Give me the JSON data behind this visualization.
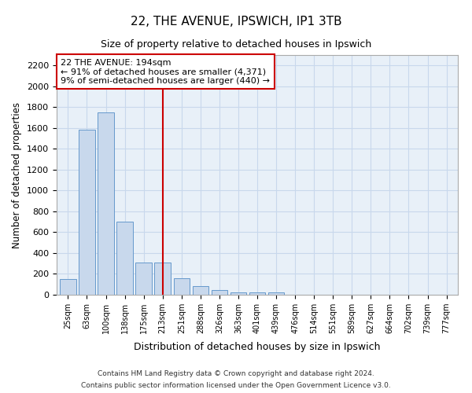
{
  "title1": "22, THE AVENUE, IPSWICH, IP1 3TB",
  "title2": "Size of property relative to detached houses in Ipswich",
  "xlabel": "Distribution of detached houses by size in Ipswich",
  "ylabel": "Number of detached properties",
  "bar_labels": [
    "25sqm",
    "63sqm",
    "100sqm",
    "138sqm",
    "175sqm",
    "213sqm",
    "251sqm",
    "288sqm",
    "326sqm",
    "363sqm",
    "401sqm",
    "439sqm",
    "476sqm",
    "514sqm",
    "551sqm",
    "589sqm",
    "627sqm",
    "664sqm",
    "702sqm",
    "739sqm",
    "777sqm"
  ],
  "bar_values": [
    150,
    1580,
    1750,
    700,
    310,
    310,
    155,
    80,
    45,
    25,
    20,
    20,
    0,
    0,
    0,
    0,
    0,
    0,
    0,
    0,
    0
  ],
  "bar_color": "#c8d8ec",
  "bar_edge_color": "#6699cc",
  "property_label": "22 THE AVENUE: 194sqm",
  "annotation_line1": "← 91% of detached houses are smaller (4,371)",
  "annotation_line2": "9% of semi-detached houses are larger (440) →",
  "annotation_box_color": "#ffffff",
  "annotation_box_edge": "#cc0000",
  "vline_color": "#cc0000",
  "vline_x": 5.0,
  "ylim": [
    0,
    2300
  ],
  "yticks": [
    0,
    200,
    400,
    600,
    800,
    1000,
    1200,
    1400,
    1600,
    1800,
    2000,
    2200
  ],
  "grid_color": "#c8d8ec",
  "bg_color": "#e8f0f8",
  "footer1": "Contains HM Land Registry data © Crown copyright and database right 2024.",
  "footer2": "Contains public sector information licensed under the Open Government Licence v3.0."
}
